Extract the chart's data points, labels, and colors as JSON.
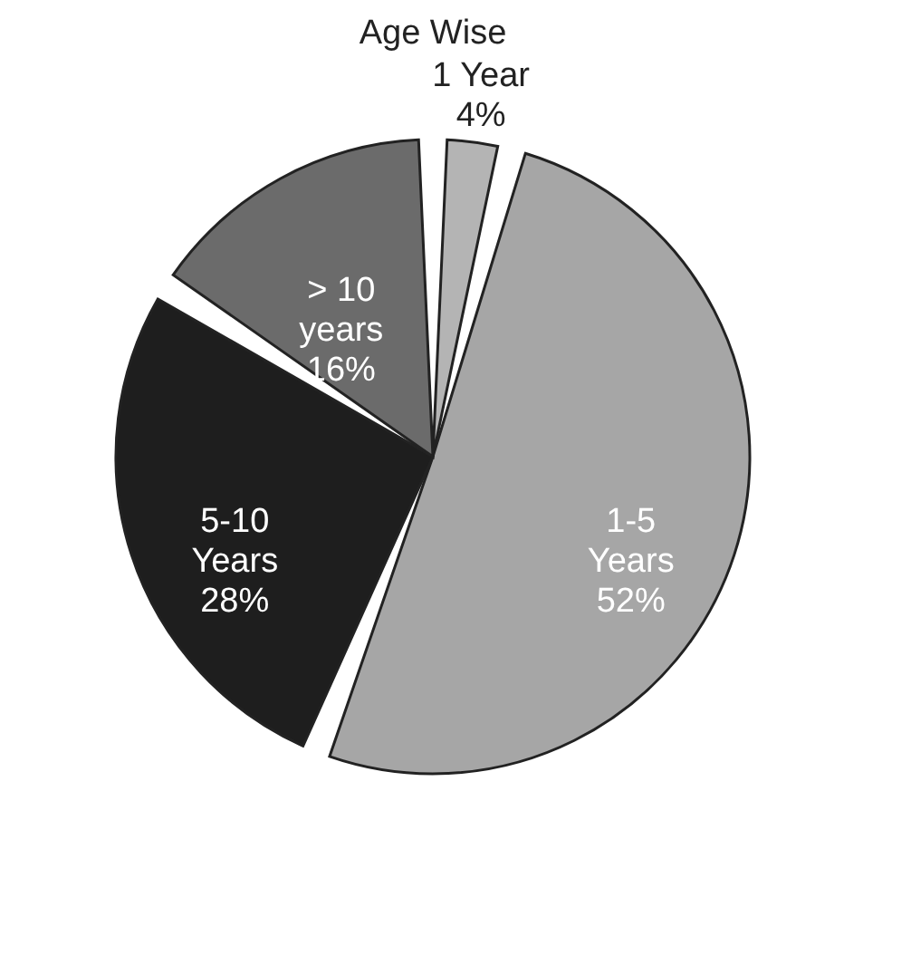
{
  "chart_data": {
    "type": "pie",
    "title": "Age Wise",
    "categories": [
      "1 Year",
      "1-5 Years",
      "5-10 Years",
      "> 10 years"
    ],
    "values": [
      4,
      52,
      28,
      16
    ],
    "value_labels": [
      "4%",
      "52%",
      "28%",
      "16%"
    ],
    "colors": [
      "#b4b4b4",
      "#a6a6a6",
      "#1e1e1e",
      "#6b6b6b"
    ]
  }
}
